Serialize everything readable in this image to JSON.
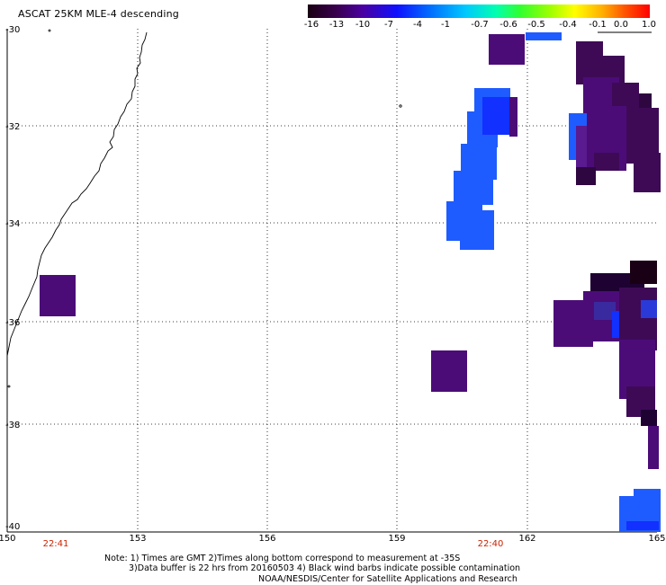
{
  "title": "ASCAT 25KM MLE-4 descending",
  "colorbar": {
    "labels": [
      "-16",
      "-13",
      "-10",
      "-7",
      "-4",
      "-1",
      "-0.7",
      "-0.6",
      "-0.5",
      "-0.4",
      "-0.1",
      "0.0",
      "1.0"
    ],
    "colors": [
      "#1a0014",
      "#38004a",
      "#4a00a0",
      "#1010ff",
      "#0070ff",
      "#00c8ff",
      "#00ffb0",
      "#30ff30",
      "#a0ff00",
      "#ffff00",
      "#ffb000",
      "#ff5000",
      "#ff0000"
    ]
  },
  "axes": {
    "lat_labels": [
      "-30",
      "-32",
      "-34",
      "-36",
      "-38",
      "-40"
    ],
    "lon_labels": [
      "150",
      "153",
      "156",
      "159",
      "162",
      "165"
    ],
    "time_labels": [
      "22:41",
      "22:40"
    ]
  },
  "notes": {
    "line1": "Note: 1) Times are GMT 2)Times along bottom correspond to measurement at -35S",
    "line2": "3)Data buffer is 22 hrs from 20160503 4) Black wind barbs indicate possible contamination",
    "line3": "NOAA/NESDIS/Center for Satellite Applications and Research"
  },
  "palette": {
    "dark_purple": "#3e0a56",
    "mid_purple": "#4b0c78",
    "blue": "#1f5cff",
    "deep_blue": "#1230ff"
  }
}
